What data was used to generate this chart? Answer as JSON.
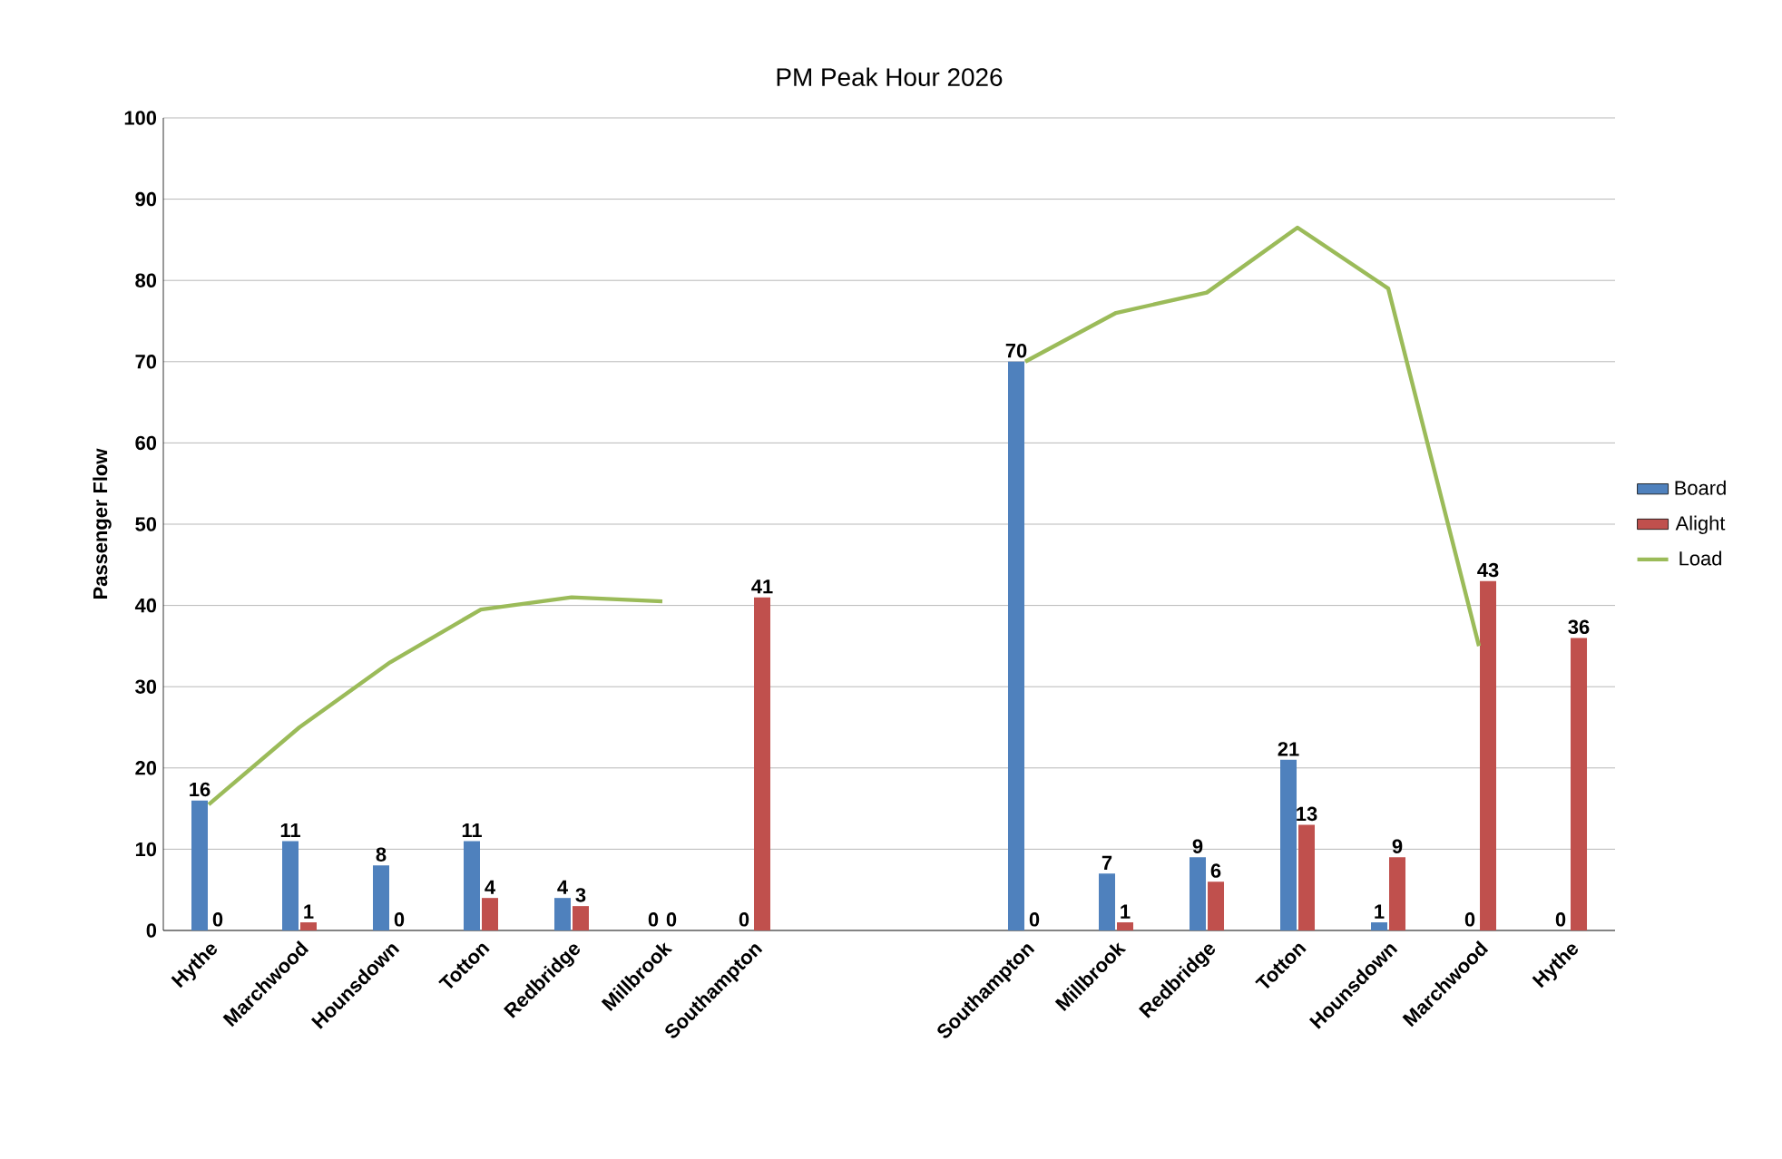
{
  "chart_data": {
    "type": "bar",
    "title": "PM Peak Hour 2026",
    "ylabel": "Passenger Flow",
    "categories": [
      "Hythe",
      "Marchwood",
      "Hounsdown",
      "Totton",
      "Redbridge",
      "Millbrook",
      "Southampton",
      null,
      null,
      "Southampton",
      "Millbrook",
      "Redbridge",
      "Totton",
      "Hounsdown",
      "Marchwood",
      "Hythe"
    ],
    "series": [
      {
        "name": "Board",
        "color": "#4f81bd",
        "values": [
          16,
          11,
          8,
          11,
          4,
          0,
          0,
          null,
          null,
          70,
          7,
          9,
          21,
          1,
          0,
          0
        ],
        "value_labels": [
          "16",
          "11",
          "8",
          "11",
          "4",
          "0",
          "0",
          null,
          null,
          "70",
          "7",
          "9",
          "21",
          "1",
          "0",
          "0"
        ]
      },
      {
        "name": "Alight",
        "color": "#c0504d",
        "values": [
          0,
          1,
          0,
          4,
          3,
          0,
          41,
          null,
          null,
          0,
          1,
          6,
          13,
          9,
          43,
          36
        ],
        "value_labels": [
          "0",
          "1",
          "0",
          "4",
          "3",
          "0",
          "41",
          null,
          null,
          "0",
          "1",
          "6",
          "13",
          "9",
          "43",
          "36"
        ]
      },
      {
        "name": "Load",
        "type": "line",
        "color": "#9bbb59",
        "values": [
          15.5,
          25,
          33,
          39.5,
          41,
          40.5,
          null,
          null,
          null,
          70,
          76,
          78.5,
          86.5,
          79,
          35,
          null
        ]
      }
    ],
    "ylim": [
      0,
      100
    ],
    "yticks": [
      0,
      10,
      20,
      30,
      40,
      50,
      60,
      70,
      80,
      90,
      100
    ],
    "grid": "y",
    "legend": "right",
    "marker": "none"
  }
}
